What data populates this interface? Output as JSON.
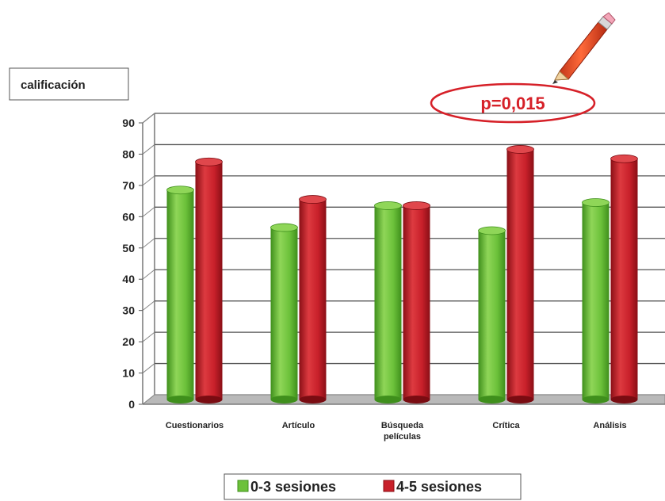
{
  "chart_data": {
    "type": "bar",
    "ylabel": "calificación",
    "ylim": [
      0,
      90
    ],
    "yticks": [
      0,
      10,
      20,
      30,
      40,
      50,
      60,
      70,
      80,
      90
    ],
    "grid": true,
    "legend_position": "bottom",
    "categories": [
      [
        "Cuestionarios"
      ],
      [
        "Artículo"
      ],
      [
        "Búsqueda",
        "películas"
      ],
      [
        "Crítica"
      ],
      [
        "Análisis"
      ]
    ],
    "series": [
      {
        "name": "0-3 sesiones",
        "color": "#6cc13a",
        "values": [
          67,
          55,
          62,
          54,
          63
        ]
      },
      {
        "name": "4-5 sesiones",
        "color": "#c8202a",
        "values": [
          76,
          64,
          62,
          80,
          77
        ]
      }
    ],
    "annotation": {
      "text": "p=0,015",
      "category_index": 3,
      "icon": "pencil-icon"
    }
  }
}
